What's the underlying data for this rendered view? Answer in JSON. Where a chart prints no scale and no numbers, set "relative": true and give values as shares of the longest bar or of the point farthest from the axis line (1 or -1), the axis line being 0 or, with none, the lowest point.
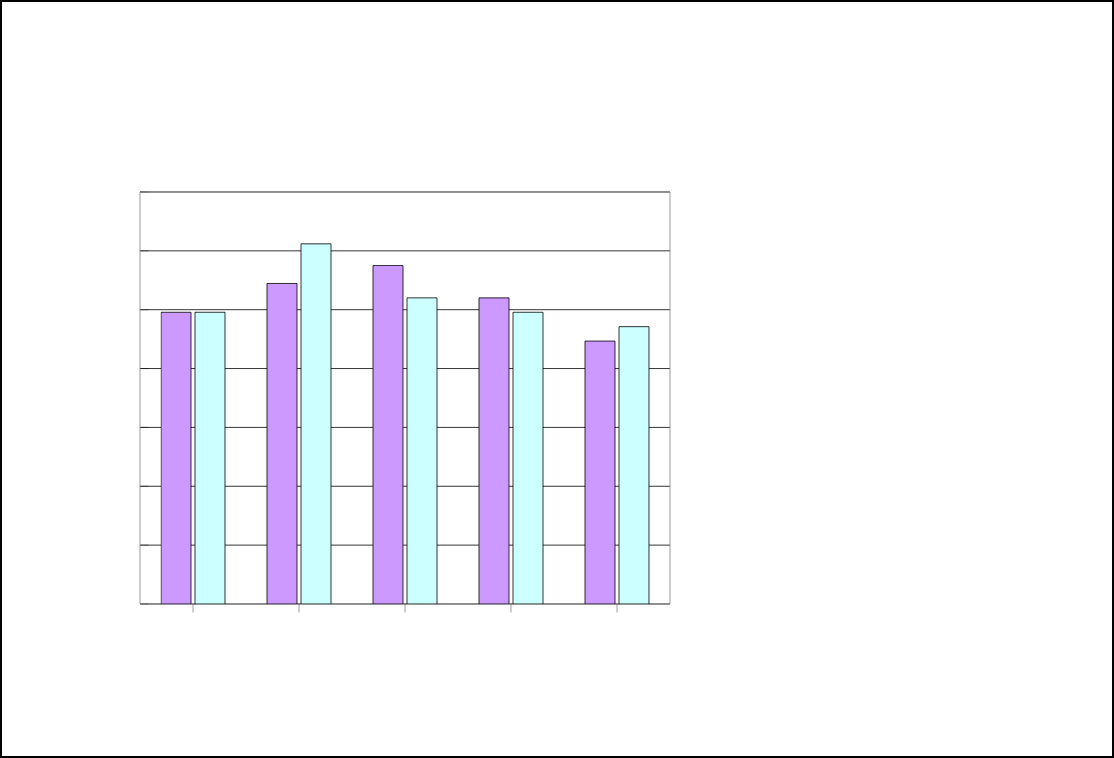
{
  "chart_data": {
    "type": "bar",
    "relative": true,
    "grid": "y",
    "categories": [
      null,
      null,
      null,
      null,
      null
    ],
    "series": [
      {
        "color": "#cc99ff",
        "values": [
          0.81,
          0.89,
          0.94,
          0.85,
          0.73
        ]
      },
      {
        "color": "#ccffff",
        "values": [
          0.81,
          1,
          0.85,
          0.81,
          0.77
        ]
      }
    ]
  }
}
